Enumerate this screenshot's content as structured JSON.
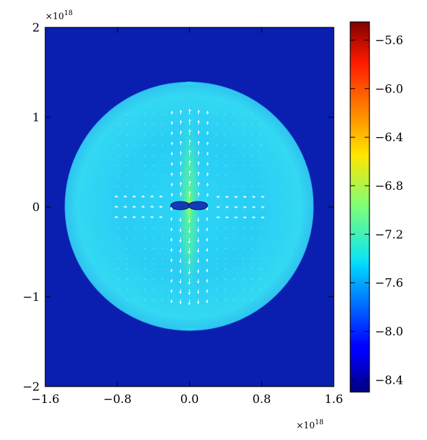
{
  "chart_data": {
    "type": "heatmap",
    "title": "",
    "xlabel": "",
    "ylabel": "",
    "xlim": [
      -1.6,
      1.6
    ],
    "ylim": [
      -2.0,
      2.0
    ],
    "x_ticks": [
      "−1.6",
      "−0.8",
      "0.0",
      "0.8",
      "1.6"
    ],
    "x_tick_values": [
      -1.6,
      -0.8,
      0.0,
      0.8,
      1.6
    ],
    "y_ticks": [
      "−2",
      "−1",
      "0",
      "1",
      "2"
    ],
    "y_tick_values": [
      -2,
      -1,
      0,
      1,
      2
    ],
    "x_multiplier": "×10",
    "x_multiplier_exp": "18",
    "y_multiplier": "×10",
    "y_multiplier_exp": "18",
    "colorbar": {
      "min": -8.5,
      "max": -5.45,
      "ticks": [
        "−8.4",
        "−8.0",
        "−7.6",
        "−7.2",
        "−6.8",
        "−6.4",
        "−6.0",
        "−5.6"
      ],
      "tick_values": [
        -8.4,
        -8.0,
        -7.6,
        -7.2,
        -6.8,
        -6.4,
        -6.0,
        -5.6
      ],
      "colormap": "jet"
    },
    "background_value": -8.45,
    "field": {
      "description_value_outer": -7.75,
      "description_value_inner": -7.55,
      "bubble_radius_x": 1.38,
      "bubble_radius_y": 1.38,
      "jet_peak_value": -6.9,
      "central_clump_value": -8.45
    },
    "velocity_vectors": {
      "color": "#ffffff",
      "description": "outflow arrows along axes"
    },
    "grid": false
  }
}
